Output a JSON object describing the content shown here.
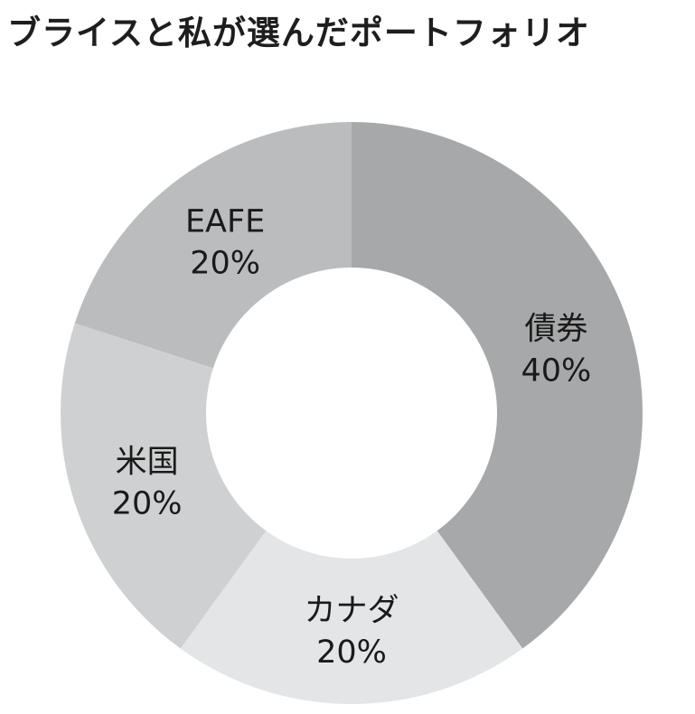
{
  "chart_data": {
    "type": "pie",
    "title": "ブライスと私が選んだポートフォリオ",
    "donut": true,
    "slices": [
      {
        "label": "債券",
        "value": 40,
        "value_label": "40%",
        "color": "#a7a8aa",
        "label_color": "#ffffff"
      },
      {
        "label": "カナダ",
        "value": 20,
        "value_label": "20%",
        "color": "#e4e5e6",
        "label_color": "#1a1a1a"
      },
      {
        "label": "米国",
        "value": 20,
        "value_label": "20%",
        "color": "#cfd0d1",
        "label_color": "#1a1a1a"
      },
      {
        "label": "EAFE",
        "value": 20,
        "value_label": "20%",
        "color": "#bbbcbe",
        "label_color": "#1a1a1a"
      }
    ]
  }
}
